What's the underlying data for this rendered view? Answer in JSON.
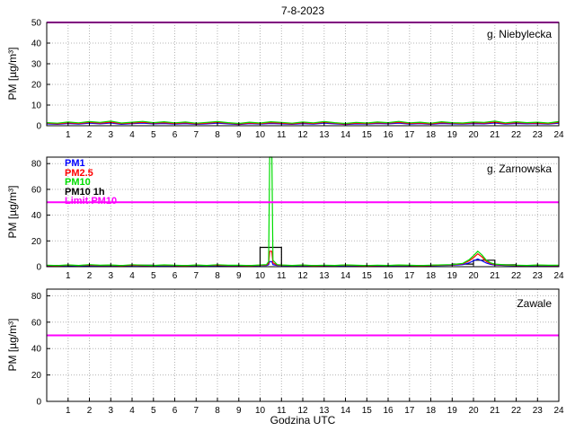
{
  "chart_data": {
    "type": "line",
    "title": "7-8-2023",
    "xlabel": "Godzina UTC",
    "ylabel": "PM [µg/m³]",
    "xlim": [
      0,
      24
    ],
    "x_ticks": [
      1,
      2,
      3,
      4,
      5,
      6,
      7,
      8,
      9,
      10,
      11,
      12,
      13,
      14,
      15,
      16,
      17,
      18,
      19,
      20,
      21,
      22,
      23,
      24
    ],
    "grid": true,
    "limit_color": "#ff00ff",
    "legend_position": "top-left of middle panel",
    "legend": [
      {
        "label": "PM1",
        "color": "#0000ff"
      },
      {
        "label": "PM2.5",
        "color": "#ff0000"
      },
      {
        "label": "PM10",
        "color": "#00dd00"
      },
      {
        "label": "PM10 1h",
        "color": "#000000"
      },
      {
        "label": "Limit PM10",
        "color": "#ff00ff"
      }
    ],
    "panels": [
      {
        "name": "g. Niebylecka",
        "ylim": [
          0,
          50
        ],
        "y_ticks": [
          0,
          10,
          20,
          30,
          40,
          50
        ],
        "limit": 50,
        "series": [
          {
            "name": "PM1",
            "color": "#0000ff",
            "x_start": 0,
            "x_step": 0.5,
            "values": [
              0.9,
              0.7,
              1.1,
              0.8,
              1.2,
              0.9,
              1.3,
              0.7,
              1.0,
              1.2,
              0.9,
              1.1,
              0.8,
              1.0,
              0.7,
              0.9,
              1.2,
              0.9,
              0.6,
              1.0,
              0.8,
              1.1,
              0.9,
              0.7,
              1.0,
              0.8,
              1.2,
              0.9,
              0.6,
              0.9,
              0.8,
              1.1,
              0.9,
              1.2,
              0.8,
              1.0,
              0.7,
              1.1,
              0.9,
              0.8,
              1.0,
              0.9,
              1.3,
              0.8,
              1.1,
              0.9,
              1.0,
              0.8,
              1.2
            ]
          },
          {
            "name": "PM2.5",
            "color": "#ff0000",
            "x_start": 0,
            "x_step": 0.5,
            "values": [
              1.2,
              0.9,
              1.4,
              1.1,
              1.6,
              1.2,
              1.7,
              1.0,
              1.3,
              1.6,
              1.2,
              1.5,
              1.1,
              1.4,
              0.9,
              1.2,
              1.6,
              1.2,
              0.8,
              1.3,
              1.0,
              1.5,
              1.2,
              0.9,
              1.4,
              1.1,
              1.6,
              1.2,
              0.8,
              1.2,
              1.0,
              1.4,
              1.2,
              1.6,
              1.1,
              1.3,
              0.9,
              1.5,
              1.2,
              1.0,
              1.4,
              1.2,
              1.7,
              1.1,
              1.5,
              1.2,
              1.3,
              1.0,
              1.6
            ]
          },
          {
            "name": "PM10",
            "color": "#00dd00",
            "x_start": 0,
            "x_step": 0.5,
            "values": [
              1.5,
              1.2,
              1.8,
              1.4,
              2.0,
              1.6,
              2.2,
              1.3,
              1.7,
              2.1,
              1.5,
              1.9,
              1.4,
              1.8,
              1.2,
              1.6,
              2.0,
              1.5,
              1.1,
              1.7,
              1.3,
              1.9,
              1.6,
              1.2,
              1.8,
              1.4,
              2.0,
              1.5,
              1.1,
              1.6,
              1.3,
              1.8,
              1.5,
              2.1,
              1.4,
              1.7,
              1.2,
              1.9,
              1.5,
              1.3,
              1.8,
              1.6,
              2.2,
              1.4,
              1.9,
              1.5,
              1.7,
              1.3,
              2.0
            ]
          }
        ]
      },
      {
        "name": "g. Zarnowska",
        "ylim": [
          0,
          85
        ],
        "y_ticks": [
          0,
          20,
          40,
          60,
          80
        ],
        "limit": 50,
        "series": [
          {
            "name": "PM10 1h",
            "color": "#000000",
            "step": true,
            "y": [
              1,
              0.8,
              1,
              0.9,
              1.1,
              1,
              0.9,
              1,
              0.8,
              1,
              15,
              1,
              0.9,
              1,
              1,
              0.8,
              1,
              0.9,
              1.2,
              2,
              5,
              1.5,
              1,
              0.9
            ]
          },
          {
            "name": "PM1",
            "color": "#0000ff",
            "points": [
              [
                0,
                0.8
              ],
              [
                0.5,
                0.6
              ],
              [
                1,
                0.9
              ],
              [
                1.5,
                0.7
              ],
              [
                2,
                1.0
              ],
              [
                2.5,
                0.8
              ],
              [
                3,
                0.9
              ],
              [
                3.5,
                0.6
              ],
              [
                4,
                0.9
              ],
              [
                4.5,
                0.8
              ],
              [
                5,
                0.7
              ],
              [
                5.5,
                0.9
              ],
              [
                6,
                0.8
              ],
              [
                6.5,
                0.6
              ],
              [
                7,
                0.9
              ],
              [
                7.5,
                0.7
              ],
              [
                8,
                0.9
              ],
              [
                8.5,
                0.8
              ],
              [
                9,
                0.8
              ],
              [
                9.5,
                0.6
              ],
              [
                10,
                0.9
              ],
              [
                10.3,
                1.0
              ],
              [
                10.4,
                1.5
              ],
              [
                10.45,
                4
              ],
              [
                10.55,
                4
              ],
              [
                10.6,
                1.6
              ],
              [
                10.8,
                1.0
              ],
              [
                11,
                0.9
              ],
              [
                11.5,
                0.7
              ],
              [
                12,
                0.9
              ],
              [
                12.5,
                0.6
              ],
              [
                13,
                0.8
              ],
              [
                13.5,
                0.7
              ],
              [
                14,
                0.9
              ],
              [
                14.5,
                0.8
              ],
              [
                15,
                0.6
              ],
              [
                15.5,
                0.8
              ],
              [
                16,
                0.7
              ],
              [
                16.5,
                0.9
              ],
              [
                17,
                0.8
              ],
              [
                17.5,
                0.6
              ],
              [
                18,
                0.8
              ],
              [
                18.5,
                0.9
              ],
              [
                19,
                1.1
              ],
              [
                19.5,
                1.6
              ],
              [
                19.8,
                3
              ],
              [
                20,
                4.5
              ],
              [
                20.2,
                6
              ],
              [
                20.4,
                4.5
              ],
              [
                20.6,
                2.8
              ],
              [
                20.8,
                1.8
              ],
              [
                21,
                1.3
              ],
              [
                21.5,
                0.9
              ],
              [
                22,
                0.8
              ],
              [
                22.5,
                0.7
              ],
              [
                23,
                0.9
              ],
              [
                23.5,
                0.8
              ],
              [
                24,
                0.8
              ]
            ]
          },
          {
            "name": "PM2.5",
            "color": "#ff0000",
            "points": [
              [
                0,
                1.0
              ],
              [
                0.5,
                0.8
              ],
              [
                1,
                1.2
              ],
              [
                1.5,
                0.9
              ],
              [
                2,
                1.3
              ],
              [
                2.5,
                1.0
              ],
              [
                3,
                1.1
              ],
              [
                3.5,
                0.8
              ],
              [
                4,
                1.2
              ],
              [
                4.5,
                1.0
              ],
              [
                5,
                0.9
              ],
              [
                5.5,
                1.2
              ],
              [
                6,
                1.0
              ],
              [
                6.5,
                0.8
              ],
              [
                7,
                1.1
              ],
              [
                7.5,
                0.9
              ],
              [
                8,
                1.2
              ],
              [
                8.5,
                1.0
              ],
              [
                9,
                1.0
              ],
              [
                9.5,
                0.8
              ],
              [
                10,
                1.1
              ],
              [
                10.3,
                1.3
              ],
              [
                10.4,
                2.5
              ],
              [
                10.45,
                12
              ],
              [
                10.55,
                12
              ],
              [
                10.6,
                3
              ],
              [
                10.8,
                1.3
              ],
              [
                11,
                1.1
              ],
              [
                11.5,
                0.9
              ],
              [
                12,
                1.1
              ],
              [
                12.5,
                0.8
              ],
              [
                13,
                1.0
              ],
              [
                13.5,
                0.9
              ],
              [
                14,
                1.2
              ],
              [
                14.5,
                1.0
              ],
              [
                15,
                0.8
              ],
              [
                15.5,
                1.0
              ],
              [
                16,
                0.9
              ],
              [
                16.5,
                1.1
              ],
              [
                17,
                1.0
              ],
              [
                17.5,
                0.8
              ],
              [
                18,
                1.0
              ],
              [
                18.5,
                1.2
              ],
              [
                19,
                1.4
              ],
              [
                19.5,
                2.2
              ],
              [
                19.8,
                4.5
              ],
              [
                20,
                7
              ],
              [
                20.2,
                10
              ],
              [
                20.4,
                7.5
              ],
              [
                20.6,
                4
              ],
              [
                20.8,
                2.5
              ],
              [
                21,
                1.7
              ],
              [
                21.5,
                1.2
              ],
              [
                22,
                1.0
              ],
              [
                22.5,
                0.9
              ],
              [
                23,
                1.1
              ],
              [
                23.5,
                1.0
              ],
              [
                24,
                1.0
              ]
            ]
          },
          {
            "name": "PM10",
            "color": "#00dd00",
            "points": [
              [
                0,
                1.2
              ],
              [
                0.5,
                0.9
              ],
              [
                1,
                1.4
              ],
              [
                1.5,
                1.0
              ],
              [
                2,
                1.6
              ],
              [
                2.5,
                1.1
              ],
              [
                3,
                1.3
              ],
              [
                3.5,
                0.9
              ],
              [
                4,
                1.5
              ],
              [
                4.5,
                1.2
              ],
              [
                5,
                1.0
              ],
              [
                5.5,
                1.4
              ],
              [
                6,
                1.1
              ],
              [
                6.5,
                0.9
              ],
              [
                7,
                1.3
              ],
              [
                7.5,
                1.0
              ],
              [
                8,
                1.5
              ],
              [
                8.5,
                1.1
              ],
              [
                9,
                1.2
              ],
              [
                9.5,
                0.9
              ],
              [
                10,
                1.3
              ],
              [
                10.3,
                1.6
              ],
              [
                10.4,
                4
              ],
              [
                10.45,
                86
              ],
              [
                10.55,
                86
              ],
              [
                10.6,
                5
              ],
              [
                10.8,
                1.6
              ],
              [
                11,
                1.3
              ],
              [
                11.5,
                1.0
              ],
              [
                12,
                1.3
              ],
              [
                12.5,
                0.9
              ],
              [
                13,
                1.2
              ],
              [
                13.5,
                1.0
              ],
              [
                14,
                1.4
              ],
              [
                14.5,
                1.1
              ],
              [
                15,
                0.9
              ],
              [
                15.5,
                1.2
              ],
              [
                16,
                1.0
              ],
              [
                16.5,
                1.3
              ],
              [
                17,
                1.1
              ],
              [
                17.5,
                0.9
              ],
              [
                18,
                1.2
              ],
              [
                18.5,
                1.4
              ],
              [
                19,
                1.6
              ],
              [
                19.5,
                2.6
              ],
              [
                19.8,
                5.5
              ],
              [
                20,
                8.5
              ],
              [
                20.2,
                12
              ],
              [
                20.4,
                9
              ],
              [
                20.6,
                5
              ],
              [
                20.8,
                3
              ],
              [
                21,
                2
              ],
              [
                21.5,
                1.4
              ],
              [
                22,
                1.2
              ],
              [
                22.5,
                1.0
              ],
              [
                23,
                1.3
              ],
              [
                23.5,
                1.1
              ],
              [
                24,
                1.2
              ]
            ]
          }
        ]
      },
      {
        "name": "Zawale",
        "ylim": [
          0,
          85
        ],
        "y_ticks": [
          0,
          20,
          40,
          60,
          80
        ],
        "limit": 50,
        "series": []
      }
    ]
  }
}
